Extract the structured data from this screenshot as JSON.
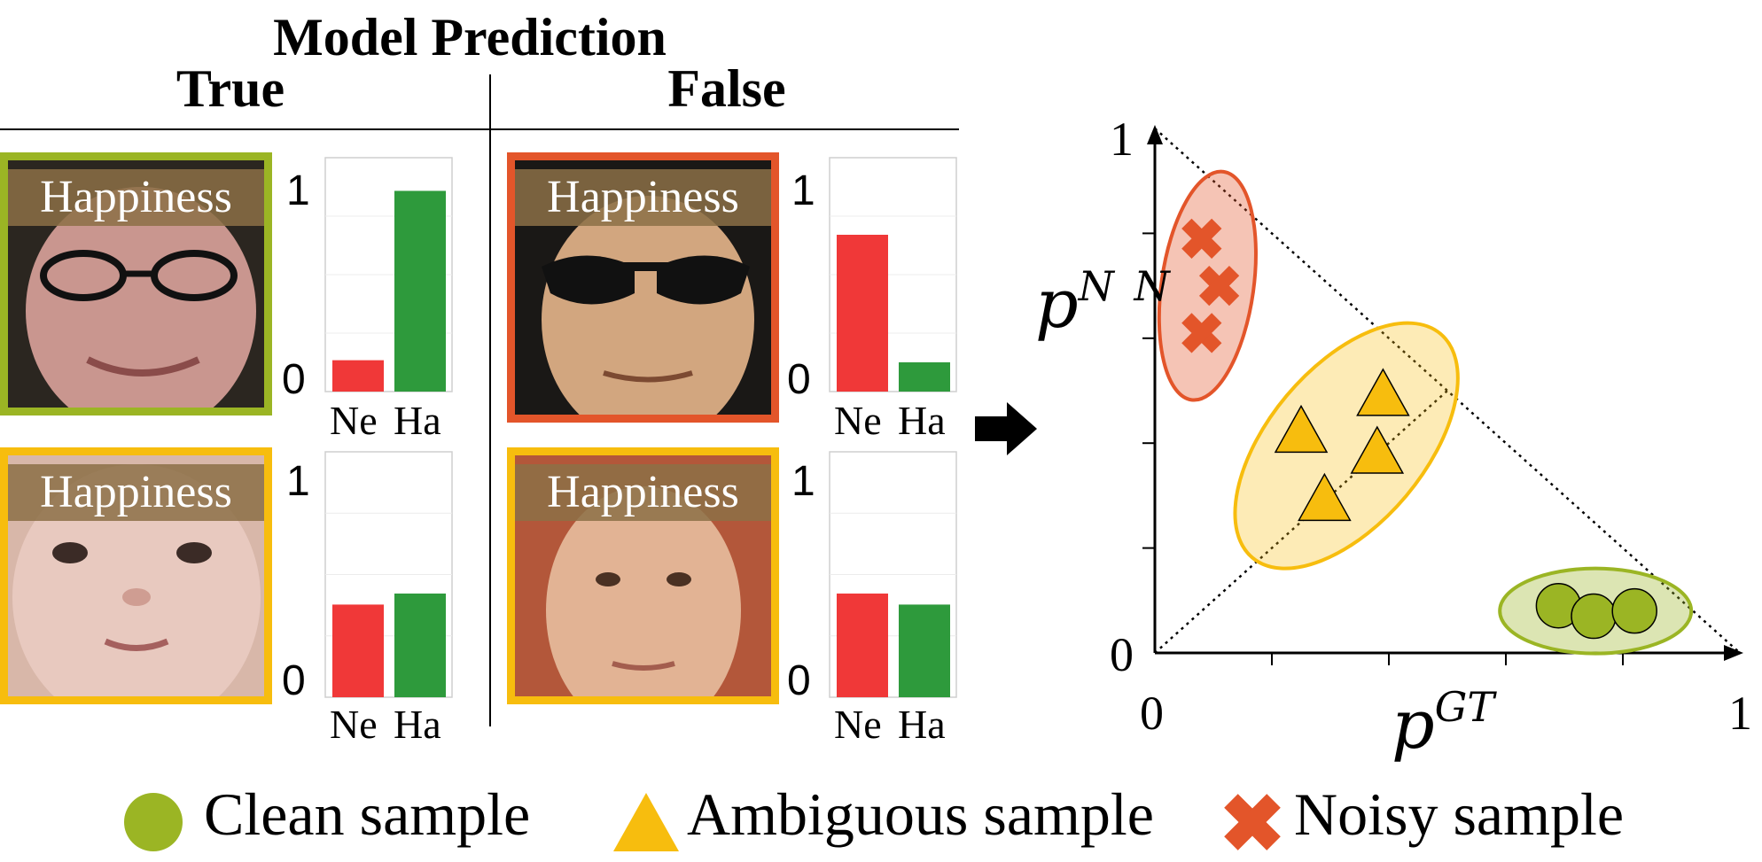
{
  "header": {
    "title": "Model Prediction",
    "col_true": "True",
    "col_false": "False"
  },
  "colors": {
    "clean": "#9bb524",
    "ambiguous": "#f7bd0e",
    "noisy": "#e3552a",
    "neutral_bar": "#f03838",
    "happy_bar": "#2e9a3c"
  },
  "panels": [
    {
      "label": "Happiness",
      "border": "clean",
      "bars": [
        0.15,
        0.96
      ]
    },
    {
      "label": "Happiness",
      "border": "noisy",
      "bars": [
        0.75,
        0.14
      ]
    },
    {
      "label": "Happiness",
      "border": "ambiguous",
      "bars": [
        0.42,
        0.47
      ]
    },
    {
      "label": "Happiness",
      "border": "ambiguous",
      "bars": [
        0.47,
        0.42
      ]
    }
  ],
  "bar_axis": {
    "tick_top": "1",
    "tick_bottom": "0",
    "cat1": "Ne",
    "cat2": "Ha"
  },
  "plot": {
    "y_label_base": "p",
    "y_label_sup": "N N",
    "x_label_base": "p",
    "x_label_sup": "GT",
    "x_tick_start": "0",
    "x_tick_end": "1",
    "y_tick_start": "0",
    "y_tick_end": "1",
    "noisy_points": [
      [
        0.08,
        0.79
      ],
      [
        0.11,
        0.7
      ],
      [
        0.08,
        0.61
      ]
    ],
    "ambiguous_points": [
      [
        0.25,
        0.42
      ],
      [
        0.39,
        0.49
      ],
      [
        0.38,
        0.38
      ],
      [
        0.29,
        0.29
      ]
    ],
    "clean_points": [
      [
        0.69,
        0.09
      ],
      [
        0.75,
        0.07
      ],
      [
        0.82,
        0.08
      ]
    ]
  },
  "legend": {
    "clean": "Clean sample",
    "ambiguous": "Ambiguous sample",
    "noisy": "Noisy sample"
  }
}
